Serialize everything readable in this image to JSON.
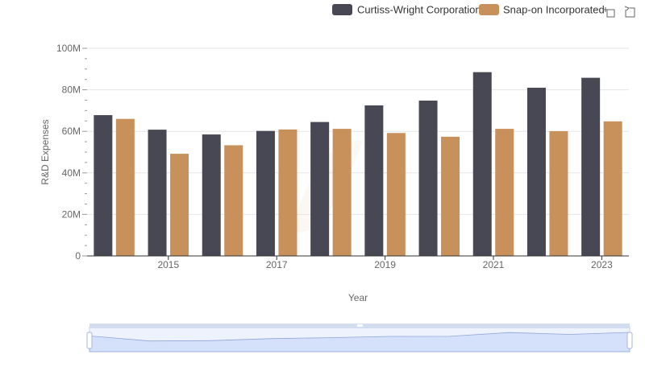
{
  "colors": {
    "series_1": "#484855",
    "series_2": "#c8915c",
    "grid": "#e6e6e6",
    "axis": "#333333",
    "zoom_fill": "#d5e0fb",
    "zoom_border": "#c8d3ee",
    "zoom_line": "#8fa6d9"
  },
  "toolbar": {
    "zoom_icon": "zoom-icon",
    "reset_icon": "reset-icon"
  },
  "chart_data": {
    "type": "bar",
    "title": "",
    "xlabel": "Year",
    "ylabel": "R&D Expenses",
    "x": [
      2014,
      2015,
      2016,
      2017,
      2018,
      2019,
      2020,
      2021,
      2022,
      2023
    ],
    "x_tick_labels": [
      "2015",
      "2017",
      "2019",
      "2021",
      "2023"
    ],
    "x_tick_values": [
      2015,
      2017,
      2019,
      2021,
      2023
    ],
    "y_tick_labels": [
      "0",
      "20M",
      "40M",
      "60M",
      "80M",
      "100M"
    ],
    "y_tick_values": [
      0,
      20000000,
      40000000,
      60000000,
      80000000,
      100000000
    ],
    "ylim": [
      0,
      100000000
    ],
    "legend_position": "top-right",
    "grid": true,
    "series": [
      {
        "name": "Curtiss-Wright Corporation",
        "values": [
          67800000,
          60800000,
          58500000,
          60200000,
          64500000,
          72500000,
          74800000,
          88500000,
          81000000,
          85800000
        ]
      },
      {
        "name": "Snap-on Incorporated",
        "values": [
          66000000,
          49200000,
          53300000,
          60900000,
          61200000,
          59200000,
          57400000,
          61200000,
          60100000,
          64800000
        ]
      }
    ]
  }
}
